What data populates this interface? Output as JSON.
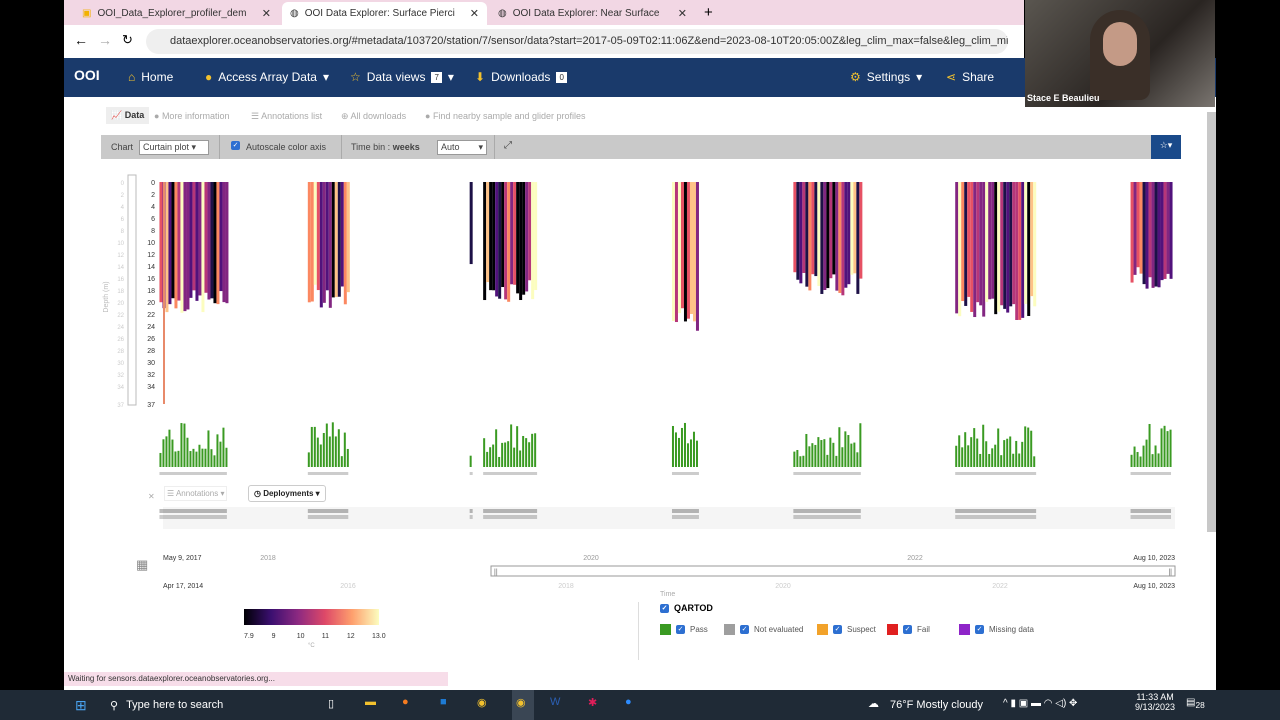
{
  "browser": {
    "tabs": [
      {
        "label": "OOI_Data_Explorer_profiler_dem"
      },
      {
        "label": "OOI Data Explorer: Surface Pierci"
      },
      {
        "label": "OOI Data Explorer: Near Surface"
      }
    ],
    "url": "dataexplorer.oceanobservatories.org/#metadata/103720/station/7/sensor/data?start=2017-05-09T02:11:06Z&end=2023-08-10T20:05:00Z&leg_clim_max=false&leg_clim_min=false",
    "status": "Waiting for sensors.dataexplorer.oceanobservatories.org..."
  },
  "nav": {
    "logo": "OOI",
    "home": "Home",
    "access": "Access Array Data",
    "views": "Data views",
    "views_count": "7",
    "downloads": "Downloads",
    "downloads_count": "0",
    "settings": "Settings",
    "share": "Share"
  },
  "subtabs": [
    "Data",
    "More information",
    "Annotations list",
    "All downloads",
    "Find nearby sample and glider profiles"
  ],
  "toolbar": {
    "chart_label": "Chart",
    "chart_value": "Curtain plot",
    "autoscale": "Autoscale color axis",
    "timebin_label": "Time bin :",
    "timebin_unit": "weeks",
    "timebin_value": "Auto"
  },
  "chart_data": {
    "type": "heatmap",
    "ylabel": "Depth (m)",
    "yticks": [
      "0",
      "2",
      "4",
      "6",
      "8",
      "10",
      "12",
      "14",
      "16",
      "18",
      "20",
      "22",
      "24",
      "26",
      "28",
      "30",
      "32",
      "34",
      "37"
    ],
    "ylim": [
      37,
      0
    ],
    "xlim": [
      "2017-05-09",
      "2023-08-10"
    ],
    "xticks": [
      "May 9, 2017",
      "2018",
      "2020",
      "2022",
      "Aug 10, 2023"
    ],
    "navigator_ticks": [
      "Apr 17, 2014",
      "2016",
      "2018",
      "2020",
      "2022",
      "Aug 10, 2023"
    ],
    "deployments": [
      {
        "start": "2017-05",
        "end": "2017-10",
        "max_depth": 22
      },
      {
        "start": "2018-04",
        "end": "2018-07",
        "max_depth": 21
      },
      {
        "start": "2019-04",
        "end": "2019-04",
        "max_depth": 17
      },
      {
        "start": "2019-05",
        "end": "2019-09",
        "max_depth": 20
      },
      {
        "start": "2020-07",
        "end": "2020-09",
        "max_depth": 25
      },
      {
        "start": "2021-04",
        "end": "2021-09",
        "max_depth": 19
      },
      {
        "start": "2022-04",
        "end": "2022-10",
        "max_depth": 23
      },
      {
        "start": "2023-05",
        "end": "2023-08",
        "max_depth": 18
      }
    ],
    "colorbar": {
      "ticks": [
        "7.9",
        "9",
        "10",
        "11",
        "12",
        "13.0"
      ],
      "unit": "°C",
      "range": [
        7.9,
        13.0
      ]
    }
  },
  "annotations": {
    "annotations_label": "Annotations",
    "deployments_label": "Deployments"
  },
  "legend": {
    "axis_title": "Time",
    "title": "QARTOD",
    "items": [
      {
        "label": "Pass",
        "color": "#3a9a22"
      },
      {
        "label": "Not evaluated",
        "color": "#9e9e9e"
      },
      {
        "label": "Suspect",
        "color": "#f2a22a"
      },
      {
        "label": "Fail",
        "color": "#e02020"
      },
      {
        "label": "Missing data",
        "color": "#8e24c8"
      }
    ]
  },
  "webcam": {
    "name": "Stace E Beaulieu"
  },
  "taskbar": {
    "search": "Type here to search",
    "weather": "76°F  Mostly cloudy",
    "time": "11:33 AM",
    "date": "9/13/2023",
    "notifications": "28"
  }
}
